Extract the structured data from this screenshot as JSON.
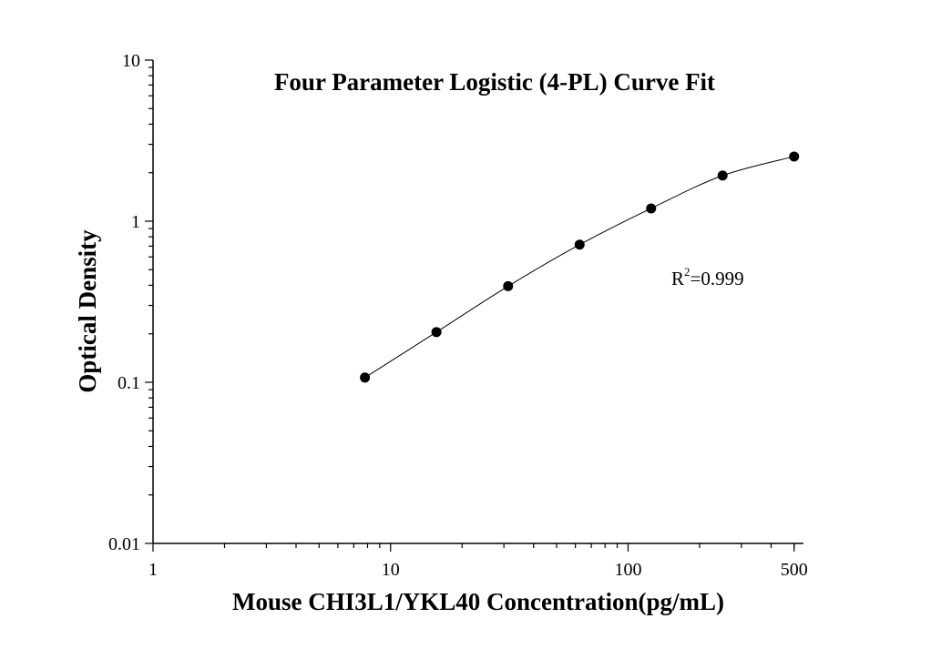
{
  "chart_data": {
    "type": "scatter",
    "title": "Four Parameter Logistic (4-PL) Curve Fit",
    "xlabel": "Mouse CHI3L1/YKL40 Concentration(pg/mL)",
    "ylabel": "Optical Density",
    "x_scale": "log",
    "y_scale": "log",
    "xlim": [
      1,
      500
    ],
    "ylim": [
      0.01,
      10
    ],
    "x_ticks": [
      {
        "value": 1,
        "label": "1"
      },
      {
        "value": 10,
        "label": "10"
      },
      {
        "value": 100,
        "label": "100"
      },
      {
        "value": 500,
        "label": "500"
      }
    ],
    "y_ticks": [
      {
        "value": 0.01,
        "label": "0.01"
      },
      {
        "value": 0.1,
        "label": "0.1"
      },
      {
        "value": 1,
        "label": "1"
      },
      {
        "value": 10,
        "label": "10"
      }
    ],
    "grid": false,
    "series": [
      {
        "type": "scatter",
        "x": [
          7.8,
          15.6,
          31.25,
          62.5,
          125,
          250,
          500
        ],
        "y": [
          0.107,
          0.205,
          0.395,
          0.715,
          1.2,
          1.92,
          2.52
        ],
        "color": "#000000"
      }
    ],
    "fit": {
      "model": "4-PL",
      "color": "#000000"
    },
    "annotations": [
      {
        "base": "R",
        "sup": "2",
        "rest": "=0.999"
      }
    ]
  }
}
